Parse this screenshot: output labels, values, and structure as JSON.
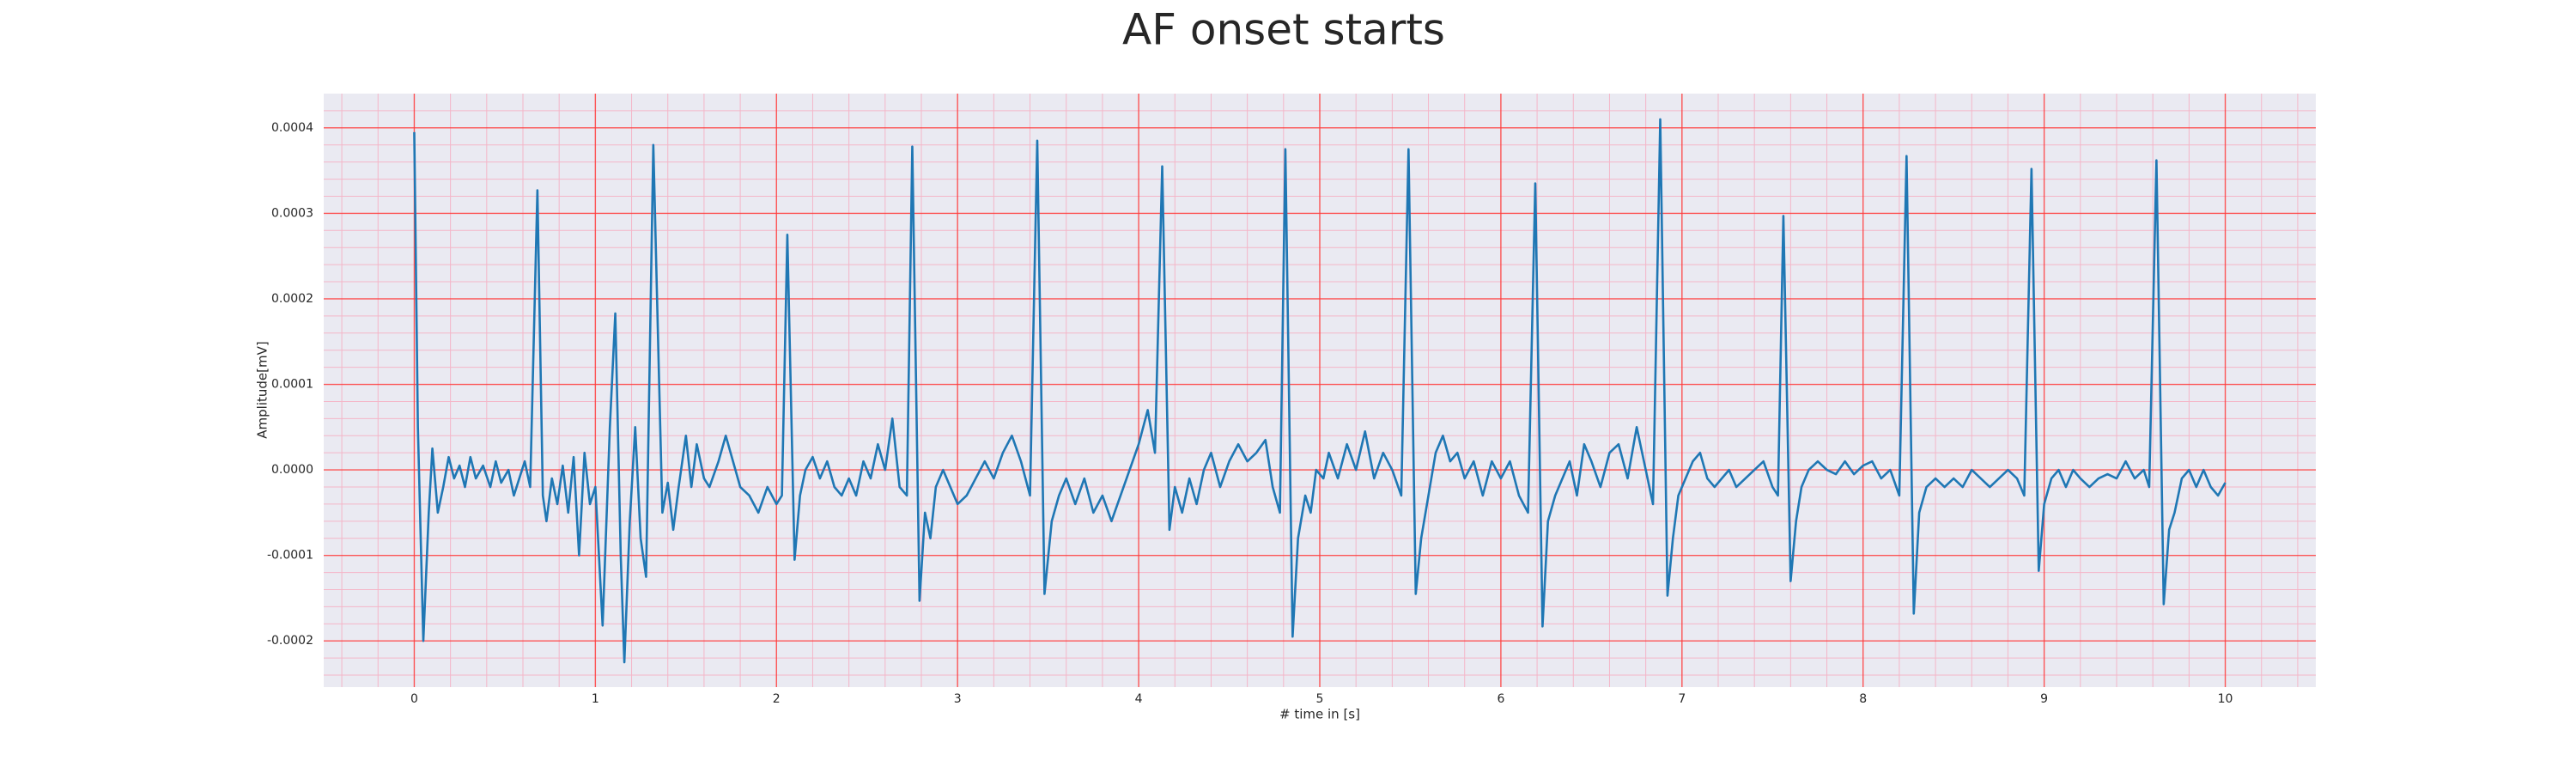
{
  "chart_data": {
    "type": "line",
    "title": "AF onset starts",
    "xlabel": "# time in [s]",
    "ylabel": "Amplitude[mV]",
    "color": "#1f77b4",
    "grid": true,
    "minor_grid": true,
    "xlim": [
      -0.5,
      10.5
    ],
    "xticks": [
      0,
      1,
      2,
      3,
      4,
      5,
      6,
      7,
      8,
      9,
      10
    ],
    "ylim": [
      -0.000254,
      0.00044
    ],
    "yticks": [
      -0.0002,
      -0.0001,
      {
        "value": 0,
        "label": "0.0000"
      },
      0.0001,
      0.0002,
      0.0003,
      0.0004
    ],
    "x": [
      0,
      0.02,
      0.05,
      0.08,
      0.1,
      0.13,
      0.16,
      0.19,
      0.22,
      0.25,
      0.28,
      0.31,
      0.34,
      0.38,
      0.42,
      0.45,
      0.48,
      0.52,
      0.55,
      0.58,
      0.61,
      0.64,
      0.68,
      0.71,
      0.73,
      0.76,
      0.79,
      0.82,
      0.85,
      0.88,
      0.91,
      0.94,
      0.97,
      1.0,
      1.04,
      1.08,
      1.11,
      1.14,
      1.16,
      1.19,
      1.22,
      1.25,
      1.28,
      1.32,
      1.35,
      1.37,
      1.4,
      1.43,
      1.46,
      1.5,
      1.53,
      1.56,
      1.6,
      1.63,
      1.68,
      1.72,
      1.76,
      1.8,
      1.85,
      1.9,
      1.95,
      2.0,
      2.03,
      2.06,
      2.1,
      2.13,
      2.16,
      2.2,
      2.24,
      2.28,
      2.32,
      2.36,
      2.4,
      2.44,
      2.48,
      2.52,
      2.56,
      2.6,
      2.64,
      2.68,
      2.72,
      2.75,
      2.79,
      2.82,
      2.85,
      2.88,
      2.92,
      2.96,
      3.0,
      3.05,
      3.1,
      3.15,
      3.2,
      3.25,
      3.3,
      3.35,
      3.4,
      3.44,
      3.48,
      3.52,
      3.56,
      3.6,
      3.65,
      3.7,
      3.75,
      3.8,
      3.85,
      3.9,
      3.95,
      4.0,
      4.05,
      4.09,
      4.13,
      4.17,
      4.2,
      4.24,
      4.28,
      4.32,
      4.36,
      4.4,
      4.45,
      4.5,
      4.55,
      4.6,
      4.65,
      4.7,
      4.74,
      4.78,
      4.81,
      4.85,
      4.88,
      4.92,
      4.95,
      4.98,
      5.02,
      5.05,
      5.1,
      5.15,
      5.2,
      5.25,
      5.3,
      5.35,
      5.4,
      5.45,
      5.49,
      5.53,
      5.56,
      5.6,
      5.64,
      5.68,
      5.72,
      5.76,
      5.8,
      5.85,
      5.9,
      5.95,
      6.0,
      6.05,
      6.1,
      6.15,
      6.19,
      6.23,
      6.26,
      6.3,
      6.34,
      6.38,
      6.42,
      6.46,
      6.5,
      6.55,
      6.6,
      6.65,
      6.7,
      6.75,
      6.8,
      6.84,
      6.88,
      6.92,
      6.95,
      6.98,
      7.02,
      7.06,
      7.1,
      7.14,
      7.18,
      7.22,
      7.26,
      7.3,
      7.35,
      7.4,
      7.45,
      7.5,
      7.53,
      7.56,
      7.6,
      7.63,
      7.66,
      7.7,
      7.75,
      7.8,
      7.85,
      7.9,
      7.95,
      8.0,
      8.05,
      8.1,
      8.15,
      8.2,
      8.24,
      8.28,
      8.31,
      8.35,
      8.4,
      8.45,
      8.5,
      8.55,
      8.6,
      8.65,
      8.7,
      8.75,
      8.8,
      8.85,
      8.89,
      8.93,
      8.97,
      9.0,
      9.04,
      9.08,
      9.12,
      9.16,
      9.2,
      9.25,
      9.3,
      9.35,
      9.4,
      9.45,
      9.5,
      9.55,
      9.58,
      9.62,
      9.66,
      9.69,
      9.72,
      9.76,
      9.8,
      9.84,
      9.88,
      9.92,
      9.96,
      10.0
    ],
    "values": [
      0.000395,
      5e-05,
      -0.0002,
      -5e-05,
      2.5e-05,
      -5e-05,
      -2e-05,
      1.5e-05,
      -1e-05,
      5e-06,
      -2e-05,
      1.5e-05,
      -1e-05,
      5e-06,
      -2e-05,
      1e-05,
      -1.5e-05,
      0,
      -3e-05,
      -1e-05,
      1e-05,
      -2e-05,
      0.000327,
      -3e-05,
      -6e-05,
      -1e-05,
      -4e-05,
      5e-06,
      -5e-05,
      1.5e-05,
      -0.0001,
      2e-05,
      -4e-05,
      -2e-05,
      -0.000182,
      5e-05,
      0.000183,
      -0.0001,
      -0.000225,
      -6e-05,
      5e-05,
      -8e-05,
      -0.000125,
      0.00038,
      0.00012,
      -5e-05,
      -1.5e-05,
      -7e-05,
      -2e-05,
      4e-05,
      -2e-05,
      3e-05,
      -1e-05,
      -2e-05,
      1e-05,
      4e-05,
      1e-05,
      -2e-05,
      -3e-05,
      -5e-05,
      -2e-05,
      -4e-05,
      -3e-05,
      0.000275,
      -0.000105,
      -3e-05,
      0,
      1.5e-05,
      -1e-05,
      1e-05,
      -2e-05,
      -3e-05,
      -1e-05,
      -3e-05,
      1e-05,
      -1e-05,
      3e-05,
      0,
      6e-05,
      -2e-05,
      -3e-05,
      0.000378,
      -0.000153,
      -5e-05,
      -8e-05,
      -2e-05,
      0,
      -2e-05,
      -4e-05,
      -3e-05,
      -1e-05,
      1e-05,
      -1e-05,
      2e-05,
      4e-05,
      1e-05,
      -3e-05,
      0.000385,
      -0.000145,
      -6e-05,
      -3e-05,
      -1e-05,
      -4e-05,
      -1e-05,
      -5e-05,
      -3e-05,
      -6e-05,
      -3e-05,
      0,
      3e-05,
      7e-05,
      2e-05,
      0.000355,
      -7e-05,
      -2e-05,
      -5e-05,
      -1e-05,
      -4e-05,
      0,
      2e-05,
      -2e-05,
      1e-05,
      3e-05,
      1e-05,
      2e-05,
      3.5e-05,
      -2e-05,
      -5e-05,
      0.000375,
      -0.000195,
      -8e-05,
      -3e-05,
      -5e-05,
      0,
      -1e-05,
      2e-05,
      -1e-05,
      3e-05,
      0,
      4.5e-05,
      -1e-05,
      2e-05,
      0,
      -3e-05,
      0.000375,
      -0.000145,
      -8e-05,
      -3e-05,
      2e-05,
      4e-05,
      1e-05,
      2e-05,
      -1e-05,
      1e-05,
      -3e-05,
      1e-05,
      -1e-05,
      1e-05,
      -3e-05,
      -5e-05,
      0.000335,
      -0.000183,
      -6e-05,
      -3e-05,
      -1e-05,
      1e-05,
      -3e-05,
      3e-05,
      1e-05,
      -2e-05,
      2e-05,
      3e-05,
      -1e-05,
      5e-05,
      0,
      -4e-05,
      0.00041,
      -0.000147,
      -8e-05,
      -3e-05,
      -1e-05,
      1e-05,
      2e-05,
      -1e-05,
      -2e-05,
      -1e-05,
      0,
      -2e-05,
      -1e-05,
      0,
      1e-05,
      -2e-05,
      -3e-05,
      0.000297,
      -0.00013,
      -6e-05,
      -2e-05,
      0,
      1e-05,
      0,
      -5e-06,
      1e-05,
      -5e-06,
      5e-06,
      1e-05,
      -1e-05,
      0,
      -3e-05,
      0.000367,
      -0.000168,
      -5e-05,
      -2e-05,
      -1e-05,
      -2e-05,
      -1e-05,
      -2e-05,
      0,
      -1e-05,
      -2e-05,
      -1e-05,
      0,
      -1e-05,
      -3e-05,
      0.000352,
      -0.000118,
      -4e-05,
      -1e-05,
      0,
      -2e-05,
      0,
      -1e-05,
      -2e-05,
      -1e-05,
      -5e-06,
      -1e-05,
      1e-05,
      -1e-05,
      0,
      -2e-05,
      0.000362,
      -0.000157,
      -7e-05,
      -5e-05,
      -1e-05,
      0,
      -2e-05,
      0,
      -2e-05,
      -3e-05,
      -1.5e-05
    ]
  }
}
